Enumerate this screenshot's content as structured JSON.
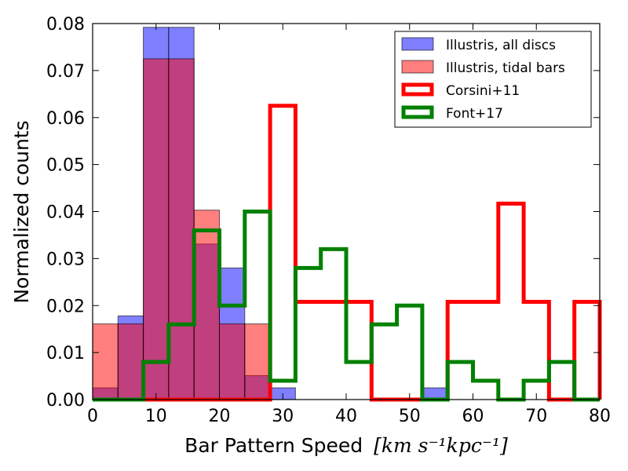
{
  "chart_data": {
    "type": "histogram",
    "xlabel": "Bar Pattern Speed",
    "xlabel_units": "[km s⁻¹kpc⁻¹]",
    "ylabel": "Normalized counts",
    "xlim": [
      0,
      80
    ],
    "ylim": [
      0,
      0.08
    ],
    "xticks": [
      0,
      10,
      20,
      30,
      40,
      50,
      60,
      70,
      80
    ],
    "xtick_labels": [
      "0",
      "10",
      "20",
      "30",
      "40",
      "50",
      "60",
      "70",
      "80"
    ],
    "yticks": [
      0,
      0.01,
      0.02,
      0.03,
      0.04,
      0.05,
      0.06,
      0.07,
      0.08
    ],
    "ytick_labels": [
      "0.00",
      "0.01",
      "0.02",
      "0.03",
      "0.04",
      "0.05",
      "0.06",
      "0.07",
      "0.08"
    ],
    "bin_edges": [
      0,
      4,
      8,
      12,
      16,
      20,
      24,
      28,
      32,
      36,
      40,
      44,
      48,
      52,
      56,
      60,
      64,
      68,
      72,
      76,
      80
    ],
    "legend_position": "top-right",
    "series": [
      {
        "name": "Illustris, all discs",
        "style": "filled",
        "color": "#0000ff",
        "opacity": 0.5,
        "values": [
          0.0025,
          0.0178,
          0.0792,
          0.0792,
          0.0331,
          0.028,
          0.0051,
          0.0025,
          0,
          0,
          0,
          0,
          0,
          0.0025,
          0,
          0,
          0,
          0,
          0,
          0
        ]
      },
      {
        "name": "Illustris, tidal bars",
        "style": "filled",
        "color": "#ff0000",
        "opacity": 0.5,
        "values": [
          0.0161,
          0.0161,
          0.0725,
          0.0725,
          0.0403,
          0.0161,
          0.0161,
          0,
          0,
          0,
          0,
          0,
          0,
          0,
          0,
          0,
          0,
          0,
          0,
          0
        ]
      },
      {
        "name": "Corsini+11",
        "style": "step",
        "color": "#ff0000",
        "values": [
          0,
          0,
          0,
          0,
          0,
          0,
          0,
          0.0625,
          0.0208,
          0.0208,
          0.0208,
          0,
          0,
          0,
          0.0208,
          0.0208,
          0.0417,
          0.0208,
          0,
          0.0208
        ]
      },
      {
        "name": "Font+17",
        "style": "step",
        "color": "#008000",
        "values": [
          0,
          0,
          0.008,
          0.016,
          0.036,
          0.02,
          0.04,
          0.004,
          0.028,
          0.032,
          0.008,
          0.016,
          0.02,
          0,
          0.008,
          0.004,
          0,
          0.004,
          0.008,
          0
        ]
      }
    ]
  }
}
